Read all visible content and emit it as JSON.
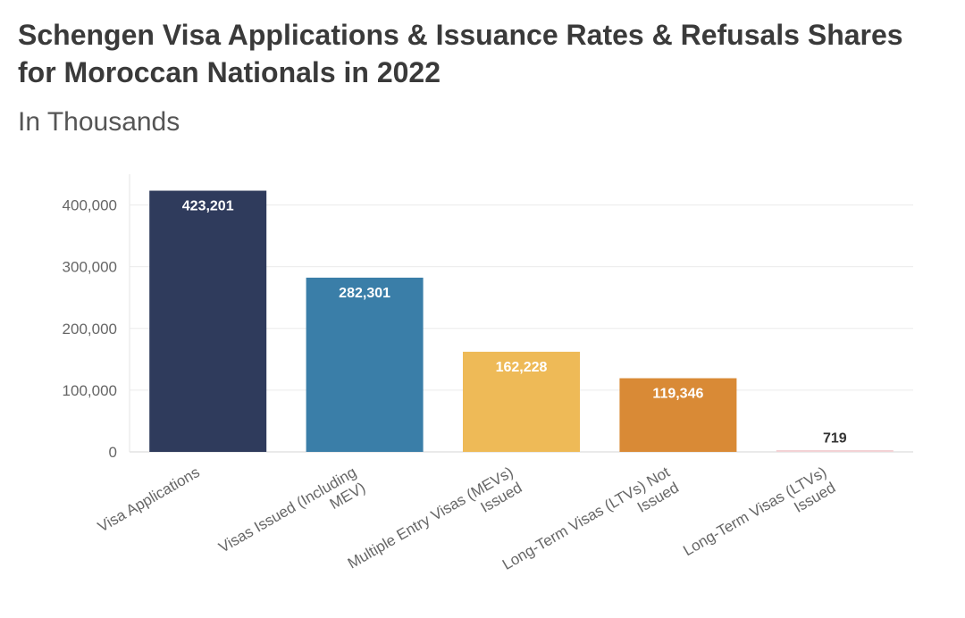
{
  "title": "Schengen Visa Applications & Issuance Rates & Refusals Shares for Moroccan Nationals in 2022",
  "subtitle": "In Thousands",
  "chart_data": {
    "type": "bar",
    "categories": [
      [
        "Visa Applications"
      ],
      [
        "Visas Issued (Including",
        "MEV)"
      ],
      [
        "Multiple Entry Visas (MEVs)",
        "Issued"
      ],
      [
        "Long-Term Visas (LTVs) Not",
        "Issued"
      ],
      [
        "Long-Term Visas (LTVs)",
        "Issued"
      ]
    ],
    "values": [
      423201,
      282301,
      162228,
      119346,
      719
    ],
    "data_labels": [
      "423,201",
      "282,301",
      "162,228",
      "119,346",
      "719"
    ],
    "colors": [
      "#2f3b5c",
      "#3a7ea8",
      "#eeba57",
      "#d98a36",
      "#f3d2d5"
    ],
    "yticks": [
      0,
      100000,
      200000,
      300000,
      400000
    ],
    "ytick_labels": [
      "0",
      "100,000",
      "200,000",
      "300,000",
      "400,000"
    ],
    "ylim": [
      0,
      450000
    ],
    "grid": true,
    "xlabel": "",
    "ylabel": ""
  }
}
